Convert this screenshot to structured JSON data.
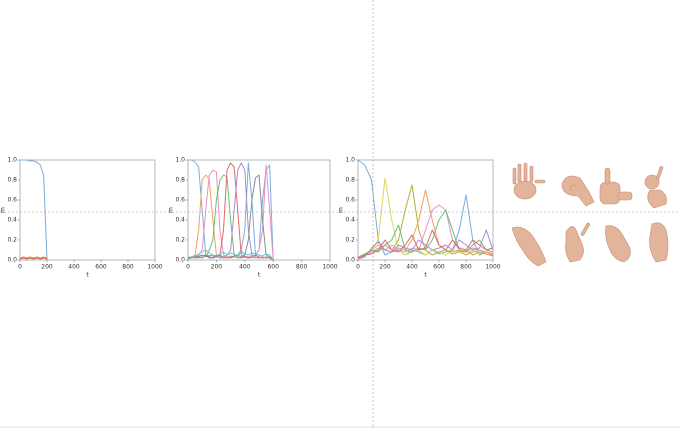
{
  "chart_data": [
    {
      "type": "line",
      "xlabel": "t",
      "ylabel": "m",
      "xlim": [
        0,
        1000
      ],
      "ylim": [
        0,
        1
      ],
      "xticks": [
        0,
        200,
        400,
        600,
        800,
        1000
      ],
      "yticks": [
        {
          "value": 0,
          "label": "0.0"
        },
        0.2,
        0.4,
        0.6,
        0.8,
        {
          "value": 1,
          "label": "1.0"
        }
      ],
      "x": [
        0,
        25,
        50,
        75,
        100,
        125,
        150,
        175,
        200
      ],
      "series": [
        {
          "color": "#7aaedc",
          "values": [
            1,
            1,
            1,
            0.99,
            0.99,
            0.98,
            0.95,
            0.85,
            0
          ]
        },
        {
          "color": "#e8894a",
          "values": [
            0.02,
            0.03,
            0.02,
            0.03,
            0.02,
            0.03,
            0.02,
            0.03,
            0.02
          ]
        },
        {
          "color": "#d9624f",
          "values": [
            0.01,
            0.02,
            0.01,
            0.02,
            0.01,
            0.02,
            0.01,
            0.02,
            0.01
          ]
        }
      ]
    },
    {
      "type": "line",
      "xlabel": "t",
      "ylabel": "m",
      "xlim": [
        0,
        1000
      ],
      "ylim": [
        0,
        1
      ],
      "xticks": [
        0,
        200,
        400,
        600,
        800,
        1000
      ],
      "yticks": [
        {
          "value": 0,
          "label": "0.0"
        },
        0.2,
        0.4,
        0.6,
        0.8,
        {
          "value": 1,
          "label": "1.0"
        }
      ],
      "x": [
        0,
        25,
        50,
        75,
        100,
        125,
        150,
        175,
        200,
        225,
        250,
        275,
        300,
        325,
        350,
        375,
        400,
        425,
        450,
        475,
        500,
        525,
        550,
        575,
        600
      ],
      "series": [
        {
          "color": "#7aaedc",
          "values": [
            1,
            1,
            0.98,
            0.93,
            0.5,
            0.05,
            0.02,
            0.02,
            0.03,
            0.02,
            0.02,
            0.03,
            0.02,
            0.03,
            0.05,
            0.1,
            0.3,
            0.97,
            0.6,
            0.05,
            0.1,
            0.6,
            0.9,
            0.95,
            0
          ]
        },
        {
          "color": "#f0a060",
          "values": [
            0.02,
            0.03,
            0.05,
            0.3,
            0.8,
            0.85,
            0.8,
            0.4,
            0.05,
            0.03,
            0.02,
            0.03,
            0.04,
            0.03,
            0.02,
            0.03,
            0.04,
            0.02,
            0.03,
            0.02,
            0.03,
            0.02,
            0.03,
            0.02,
            0
          ]
        },
        {
          "color": "#e78fc8",
          "values": [
            0.02,
            0.02,
            0.03,
            0.05,
            0.1,
            0.5,
            0.85,
            0.9,
            0.88,
            0.3,
            0.05,
            0.03,
            0.02,
            0.03,
            0.05,
            0.1,
            0.04,
            0.03,
            0.02,
            0.05,
            0.1,
            0.3,
            0.95,
            0.5,
            0
          ]
        },
        {
          "color": "#6cbf6c",
          "values": [
            0.02,
            0.03,
            0.02,
            0.04,
            0.05,
            0.03,
            0.1,
            0.2,
            0.6,
            0.8,
            0.85,
            0.83,
            0.4,
            0.05,
            0.03,
            0.02,
            0.03,
            0.02,
            0.05,
            0.03,
            0.02,
            0.03,
            0.02,
            0.03,
            0
          ]
        },
        {
          "color": "#de6a6a",
          "values": [
            0.03,
            0.02,
            0.04,
            0.03,
            0.02,
            0.05,
            0.04,
            0.05,
            0.03,
            0.05,
            0.3,
            0.9,
            0.97,
            0.93,
            0.5,
            0.05,
            0.03,
            0.02,
            0.03,
            0.05,
            0.03,
            0.02,
            0.03,
            0.02,
            0
          ]
        },
        {
          "color": "#a98bd0",
          "values": [
            0.01,
            0.02,
            0.03,
            0.02,
            0.03,
            0.04,
            0.02,
            0.03,
            0.05,
            0.04,
            0.03,
            0.05,
            0.1,
            0.5,
            0.9,
            0.97,
            0.9,
            0.3,
            0.05,
            0.03,
            0.02,
            0.03,
            0.02,
            0.03,
            0
          ]
        },
        {
          "color": "#8c8c8c",
          "values": [
            0.02,
            0.03,
            0.02,
            0.03,
            0.05,
            0.04,
            0.03,
            0.02,
            0.04,
            0.05,
            0.03,
            0.02,
            0.03,
            0.04,
            0.05,
            0.03,
            0.05,
            0.2,
            0.6,
            0.82,
            0.85,
            0.4,
            0.05,
            0.03,
            0
          ]
        },
        {
          "color": "#5fc7d4",
          "values": [
            0.01,
            0.02,
            0.04,
            0.06,
            0.08,
            0.1,
            0.07,
            0.05,
            0.04,
            0.06,
            0.08,
            0.05,
            0.07,
            0.06,
            0.04,
            0.08,
            0.06,
            0.05,
            0.07,
            0.06,
            0.05,
            0.04,
            0.06,
            0.05,
            0
          ]
        }
      ]
    },
    {
      "type": "line",
      "xlabel": "t",
      "ylabel": "m",
      "xlim": [
        0,
        1000
      ],
      "ylim": [
        0,
        1
      ],
      "xticks": [
        0,
        200,
        400,
        600,
        800,
        1000
      ],
      "yticks": [
        {
          "value": 0,
          "label": "0.0"
        },
        0.2,
        0.4,
        0.6,
        0.8,
        {
          "value": 1,
          "label": "1.0"
        }
      ],
      "x": [
        0,
        50,
        100,
        150,
        200,
        250,
        300,
        350,
        400,
        450,
        500,
        550,
        600,
        650,
        700,
        750,
        800,
        850,
        900,
        950,
        1000
      ],
      "series": [
        {
          "color": "#7aaedc",
          "values": [
            1,
            0.95,
            0.8,
            0.2,
            0.05,
            0.08,
            0.1,
            0.05,
            0.1,
            0.08,
            0.05,
            0.1,
            0.06,
            0.08,
            0.1,
            0.3,
            0.65,
            0.2,
            0.05,
            0.08,
            0.06
          ]
        },
        {
          "color": "#d8d85a",
          "values": [
            0.02,
            0.05,
            0.1,
            0.2,
            0.82,
            0.4,
            0.1,
            0.05,
            0.08,
            0.1,
            0.05,
            0.1,
            0.08,
            0.05,
            0.1,
            0.08,
            0.05,
            0.1,
            0.06,
            0.08,
            0.05
          ]
        },
        {
          "color": "#b0b040",
          "values": [
            0.03,
            0.06,
            0.08,
            0.1,
            0.15,
            0.1,
            0.2,
            0.5,
            0.75,
            0.3,
            0.1,
            0.05,
            0.08,
            0.1,
            0.06,
            0.08,
            0.1,
            0.05,
            0.08,
            0.06,
            0.04
          ]
        },
        {
          "color": "#f0a060",
          "values": [
            0.02,
            0.04,
            0.1,
            0.15,
            0.1,
            0.08,
            0.12,
            0.1,
            0.2,
            0.4,
            0.7,
            0.4,
            0.15,
            0.1,
            0.08,
            0.1,
            0.05,
            0.08,
            0.1,
            0.06,
            0.05
          ]
        },
        {
          "color": "#e78fc8",
          "values": [
            0.03,
            0.05,
            0.08,
            0.12,
            0.1,
            0.15,
            0.1,
            0.08,
            0.12,
            0.1,
            0.3,
            0.5,
            0.55,
            0.5,
            0.2,
            0.1,
            0.08,
            0.12,
            0.1,
            0.08,
            0.06
          ]
        },
        {
          "color": "#6cbf6c",
          "values": [
            0.02,
            0.06,
            0.1,
            0.08,
            0.15,
            0.2,
            0.35,
            0.1,
            0.08,
            0.12,
            0.1,
            0.2,
            0.4,
            0.5,
            0.3,
            0.1,
            0.08,
            0.15,
            0.2,
            0.1,
            0.08
          ]
        },
        {
          "color": "#a98bd0",
          "values": [
            0.01,
            0.03,
            0.12,
            0.18,
            0.1,
            0.08,
            0.15,
            0.12,
            0.1,
            0.2,
            0.15,
            0.1,
            0.12,
            0.15,
            0.1,
            0.2,
            0.15,
            0.1,
            0.12,
            0.3,
            0.1
          ]
        },
        {
          "color": "#de6a6a",
          "values": [
            0.02,
            0.05,
            0.06,
            0.1,
            0.2,
            0.1,
            0.08,
            0.15,
            0.25,
            0.1,
            0.12,
            0.3,
            0.15,
            0.1,
            0.2,
            0.12,
            0.1,
            0.2,
            0.15,
            0.1,
            0.12
          ]
        }
      ]
    }
  ]
}
